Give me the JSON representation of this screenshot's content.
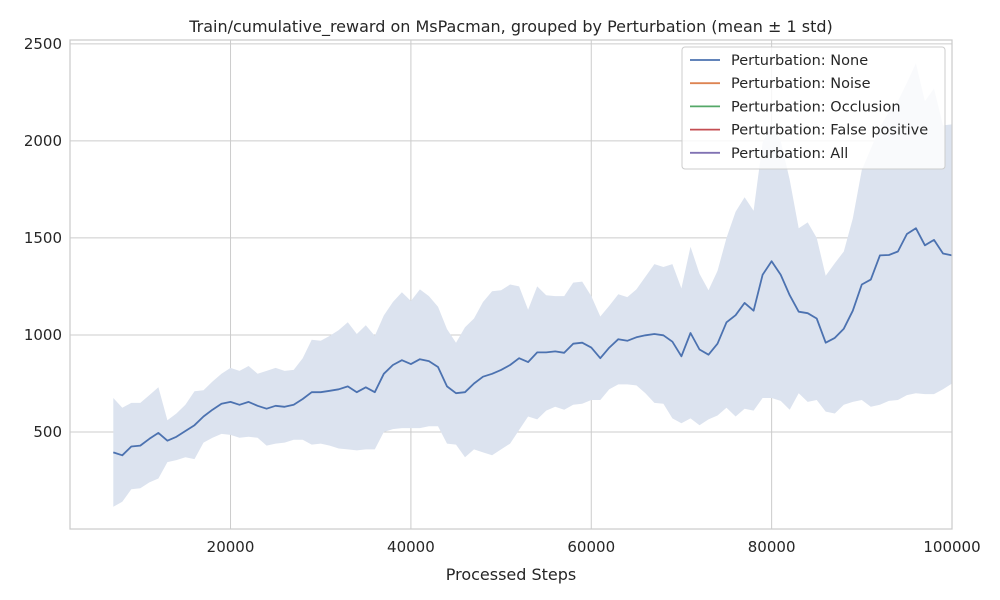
{
  "chart_data": {
    "type": "line",
    "title": "Train/cumulative_reward on MsPacman, grouped by Perturbation (mean ± 1 std)",
    "xlabel": "Processed Steps",
    "ylabel": "",
    "xlim": [
      2200,
      100000
    ],
    "ylim": [
      0,
      2520
    ],
    "xticks": [
      20000,
      40000,
      60000,
      80000,
      100000
    ],
    "yticks": [
      500,
      1000,
      1500,
      2000,
      2500
    ],
    "xtick_labels": [
      "20000",
      "40000",
      "60000",
      "80000",
      "100000"
    ],
    "ytick_labels": [
      "500",
      "1000",
      "1500",
      "2000",
      "2500"
    ],
    "grid": true,
    "legend_position": "top-right",
    "colors": {
      "None": "#4c72b0",
      "Noise": "#dd8452",
      "Occlusion": "#55a868",
      "False positive": "#c44e52",
      "All": "#8172b3",
      "band": "#dce3ef"
    },
    "legend": [
      "Perturbation: None",
      "Perturbation: Noise",
      "Perturbation: Occlusion",
      "Perturbation: False positive",
      "Perturbation: All"
    ],
    "series": [
      {
        "name": "Perturbation: None",
        "x": [
          7000,
          8000,
          9000,
          10000,
          11000,
          12000,
          13000,
          14000,
          15000,
          16000,
          17000,
          18000,
          19000,
          20000,
          21000,
          22000,
          23000,
          24000,
          25000,
          26000,
          27000,
          28000,
          29000,
          30000,
          31000,
          32000,
          33000,
          34000,
          35000,
          36000,
          37000,
          38000,
          39000,
          40000,
          41000,
          42000,
          43000,
          44000,
          45000,
          46000,
          47000,
          48000,
          49000,
          50000,
          51000,
          52000,
          53000,
          54000,
          55000,
          56000,
          57000,
          58000,
          59000,
          60000,
          61000,
          62000,
          63000,
          64000,
          65000,
          66000,
          67000,
          68000,
          69000,
          70000,
          71000,
          72000,
          73000,
          74000,
          75000,
          76000,
          77000,
          78000,
          79000,
          80000,
          81000,
          82000,
          83000,
          84000,
          85000,
          86000,
          87000,
          88000,
          89000,
          90000,
          91000,
          92000,
          93000,
          94000,
          95000,
          96000,
          97000,
          98000,
          99000,
          100000
        ],
        "mean": [
          395,
          380,
          425,
          430,
          465,
          495,
          455,
          475,
          505,
          535,
          580,
          615,
          645,
          655,
          640,
          655,
          635,
          620,
          635,
          630,
          640,
          670,
          705,
          705,
          712,
          720,
          735,
          705,
          730,
          705,
          800,
          845,
          870,
          850,
          875,
          865,
          835,
          735,
          700,
          705,
          750,
          785,
          800,
          820,
          845,
          880,
          860,
          910,
          910,
          915,
          908,
          955,
          960,
          935,
          880,
          935,
          978,
          970,
          988,
          998,
          1005,
          998,
          965,
          890,
          1010,
          925,
          898,
          955,
          1065,
          1102,
          1165,
          1125,
          1310,
          1380,
          1310,
          1205,
          1120,
          1112,
          1085,
          960,
          985,
          1032,
          1125,
          1260,
          1285,
          1410,
          1412,
          1430,
          1520,
          1550,
          1462,
          1490,
          1420,
          1410
        ],
        "upper": [
          675,
          625,
          650,
          650,
          690,
          730,
          560,
          595,
          640,
          710,
          715,
          760,
          800,
          830,
          815,
          840,
          800,
          815,
          830,
          815,
          820,
          880,
          975,
          970,
          995,
          1025,
          1065,
          1005,
          1050,
          995,
          1100,
          1170,
          1220,
          1175,
          1235,
          1200,
          1145,
          1030,
          960,
          1040,
          1085,
          1170,
          1225,
          1230,
          1260,
          1250,
          1130,
          1250,
          1205,
          1200,
          1200,
          1270,
          1275,
          1200,
          1095,
          1150,
          1210,
          1195,
          1235,
          1300,
          1365,
          1350,
          1365,
          1240,
          1455,
          1315,
          1230,
          1330,
          1500,
          1635,
          1710,
          1640,
          1990,
          2085,
          2000,
          1800,
          1550,
          1580,
          1500,
          1305,
          1370,
          1430,
          1600,
          1850,
          1960,
          2070,
          2150,
          2205,
          2300,
          2400,
          2205,
          2270,
          2080,
          2085
        ],
        "lower": [
          115,
          140,
          205,
          210,
          240,
          260,
          345,
          355,
          370,
          360,
          445,
          470,
          490,
          485,
          470,
          475,
          470,
          430,
          440,
          445,
          460,
          460,
          435,
          440,
          430,
          415,
          410,
          405,
          410,
          410,
          500,
          515,
          520,
          520,
          520,
          530,
          530,
          440,
          435,
          370,
          410,
          395,
          380,
          410,
          440,
          510,
          580,
          565,
          610,
          630,
          615,
          640,
          645,
          665,
          665,
          720,
          745,
          745,
          740,
          700,
          650,
          645,
          570,
          545,
          570,
          535,
          565,
          585,
          625,
          580,
          620,
          610,
          675,
          675,
          660,
          615,
          700,
          655,
          665,
          605,
          595,
          640,
          655,
          665,
          630,
          640,
          660,
          665,
          690,
          700,
          695,
          695,
          720,
          750
        ]
      },
      {
        "name": "Perturbation: Noise",
        "x": [],
        "mean": []
      },
      {
        "name": "Perturbation: Occlusion",
        "x": [],
        "mean": []
      },
      {
        "name": "Perturbation: False positive",
        "x": [],
        "mean": []
      },
      {
        "name": "Perturbation: All",
        "x": [],
        "mean": []
      }
    ]
  }
}
